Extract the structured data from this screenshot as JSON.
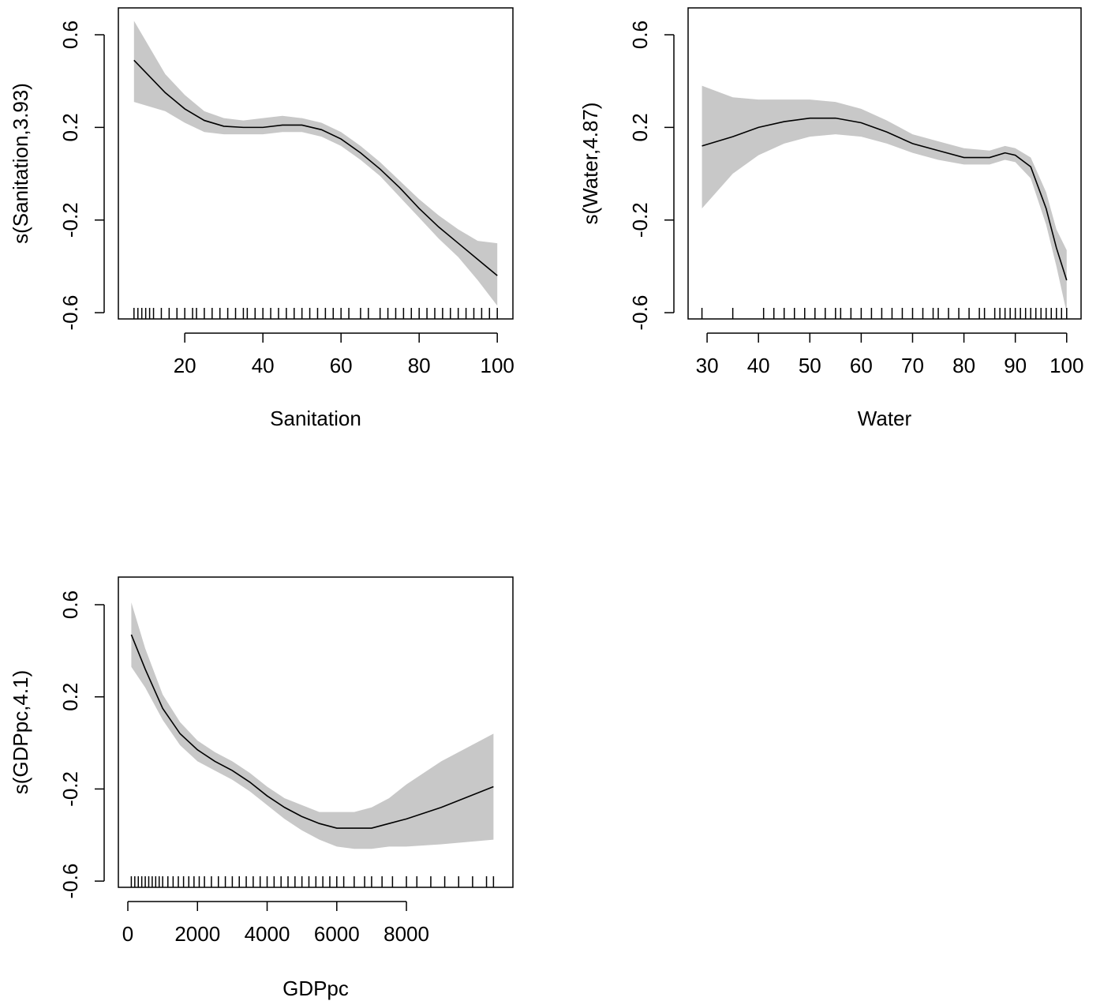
{
  "chart_data": [
    {
      "type": "line",
      "xlabel": "Sanitation",
      "ylabel": "s(Sanitation,3.93)",
      "x": [
        7,
        15,
        20,
        25,
        30,
        35,
        40,
        45,
        50,
        55,
        60,
        65,
        70,
        75,
        80,
        85,
        90,
        95,
        100
      ],
      "values": [
        0.49,
        0.35,
        0.28,
        0.23,
        0.205,
        0.2,
        0.2,
        0.21,
        0.21,
        0.19,
        0.15,
        0.09,
        0.02,
        -0.06,
        -0.15,
        -0.23,
        -0.3,
        -0.37,
        -0.44
      ],
      "lower": [
        0.31,
        0.27,
        0.22,
        0.18,
        0.17,
        0.17,
        0.17,
        0.18,
        0.18,
        0.16,
        0.12,
        0.06,
        -0.01,
        -0.1,
        -0.19,
        -0.28,
        -0.36,
        -0.46,
        -0.57
      ],
      "upper": [
        0.66,
        0.43,
        0.34,
        0.27,
        0.24,
        0.23,
        0.24,
        0.25,
        0.24,
        0.22,
        0.18,
        0.12,
        0.05,
        -0.03,
        -0.11,
        -0.18,
        -0.24,
        -0.29,
        -0.3
      ],
      "rug": [
        7,
        8,
        9,
        10,
        11,
        12,
        14,
        16,
        18,
        20,
        22,
        23,
        25,
        27,
        29,
        31,
        33,
        35,
        36,
        38,
        40,
        42,
        44,
        46,
        48,
        50,
        52,
        54,
        56,
        58,
        60,
        62,
        65,
        67,
        70,
        72,
        74,
        76,
        78,
        80,
        82,
        84,
        86,
        88,
        90,
        92,
        94,
        96,
        98,
        100
      ],
      "xlim": [
        3,
        104
      ],
      "ylim": [
        -0.627,
        0.716
      ],
      "xticks": [
        20,
        40,
        60,
        80,
        100
      ],
      "yticks": [
        -0.6,
        -0.2,
        0.2,
        0.6
      ],
      "band_color": "#c8c8c8",
      "color": "#000000"
    },
    {
      "type": "line",
      "xlabel": "Water",
      "ylabel": "s(Water,4.87)",
      "x": [
        29,
        35,
        40,
        45,
        50,
        55,
        60,
        65,
        70,
        75,
        80,
        85,
        88,
        90,
        93,
        96,
        98,
        100
      ],
      "values": [
        0.12,
        0.16,
        0.2,
        0.225,
        0.24,
        0.24,
        0.22,
        0.18,
        0.13,
        0.1,
        0.07,
        0.07,
        0.09,
        0.08,
        0.03,
        -0.15,
        -0.32,
        -0.46
      ],
      "lower": [
        -0.15,
        0.0,
        0.08,
        0.13,
        0.16,
        0.17,
        0.16,
        0.13,
        0.09,
        0.06,
        0.04,
        0.04,
        0.06,
        0.05,
        -0.02,
        -0.22,
        -0.4,
        -0.6
      ],
      "upper": [
        0.38,
        0.33,
        0.32,
        0.32,
        0.32,
        0.31,
        0.28,
        0.23,
        0.17,
        0.14,
        0.11,
        0.1,
        0.12,
        0.11,
        0.07,
        -0.08,
        -0.24,
        -0.33
      ],
      "rug": [
        29,
        35,
        41,
        43,
        45,
        47,
        49,
        51,
        53,
        55,
        56,
        58,
        60,
        62,
        64,
        66,
        68,
        70,
        72,
        74,
        75,
        77,
        79,
        81,
        83,
        84,
        86,
        87,
        88,
        89,
        90,
        91,
        92,
        93,
        94,
        95,
        96,
        97,
        98,
        99,
        100
      ],
      "xlim": [
        26.3,
        102.8
      ],
      "ylim": [
        -0.627,
        0.716
      ],
      "xticks": [
        30,
        40,
        50,
        60,
        70,
        80,
        90,
        100
      ],
      "yticks": [
        -0.6,
        -0.2,
        0.2,
        0.6
      ],
      "band_color": "#c8c8c8",
      "color": "#000000"
    },
    {
      "type": "line",
      "xlabel": "GDPpc",
      "ylabel": "s(GDPpc,4.1)",
      "x": [
        100,
        500,
        1000,
        1500,
        2000,
        2500,
        3000,
        3500,
        4000,
        4500,
        5000,
        5500,
        6000,
        6500,
        7000,
        7500,
        8000,
        9000,
        10500
      ],
      "values": [
        0.47,
        0.32,
        0.15,
        0.04,
        -0.03,
        -0.08,
        -0.12,
        -0.17,
        -0.23,
        -0.28,
        -0.32,
        -0.35,
        -0.37,
        -0.37,
        -0.37,
        -0.35,
        -0.33,
        -0.28,
        -0.19
      ],
      "lower": [
        0.33,
        0.24,
        0.1,
        -0.01,
        -0.08,
        -0.12,
        -0.16,
        -0.21,
        -0.27,
        -0.33,
        -0.38,
        -0.42,
        -0.45,
        -0.46,
        -0.46,
        -0.45,
        -0.45,
        -0.44,
        -0.42
      ],
      "upper": [
        0.61,
        0.41,
        0.21,
        0.09,
        0.01,
        -0.04,
        -0.08,
        -0.13,
        -0.19,
        -0.24,
        -0.27,
        -0.3,
        -0.3,
        -0.3,
        -0.28,
        -0.24,
        -0.18,
        -0.08,
        0.04
      ],
      "rug": [
        100,
        200,
        300,
        400,
        500,
        600,
        700,
        800,
        900,
        1000,
        1150,
        1300,
        1450,
        1600,
        1750,
        1900,
        2050,
        2200,
        2400,
        2600,
        2800,
        3000,
        3200,
        3400,
        3600,
        3800,
        4000,
        4200,
        4400,
        4600,
        4800,
        5000,
        5200,
        5400,
        5600,
        5800,
        6000,
        6200,
        6500,
        6800,
        7000,
        7300,
        7600,
        8000,
        8300,
        8700,
        9100,
        9500,
        9900,
        10300,
        10500
      ],
      "xlim": [
        -272,
        11058
      ],
      "ylim": [
        -0.627,
        0.72
      ],
      "xticks": [
        0,
        2000,
        4000,
        6000,
        8000
      ],
      "yticks": [
        -0.6,
        -0.2,
        0.2,
        0.6
      ],
      "band_color": "#c8c8c8",
      "color": "#000000"
    }
  ]
}
